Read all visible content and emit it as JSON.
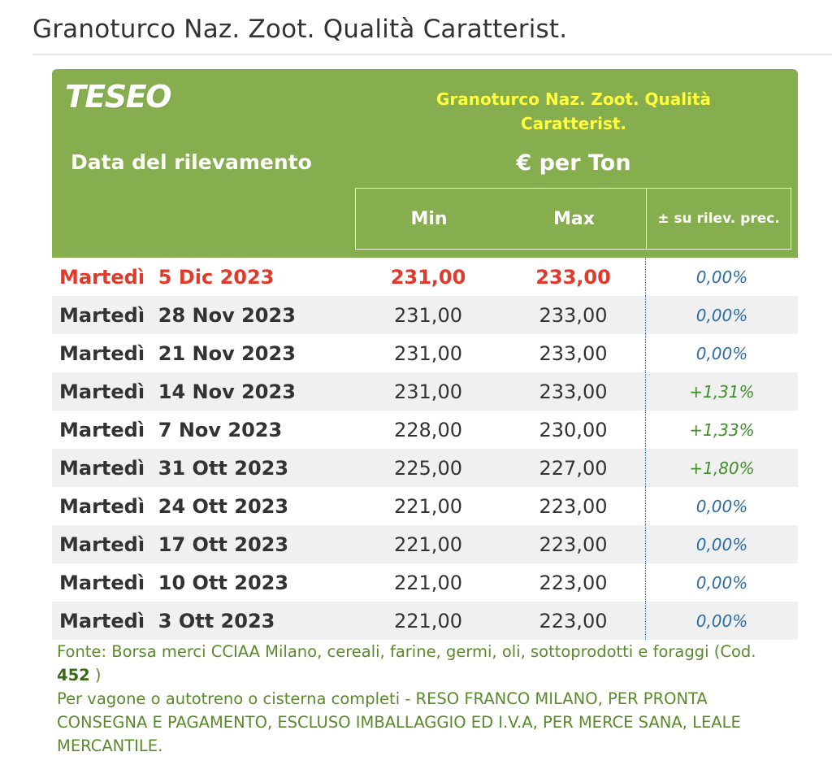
{
  "page": {
    "title": "Granoturco Naz. Zoot. Qualità Caratterist."
  },
  "header": {
    "logo": "TESEO",
    "date_column": "Data del rilevamento",
    "product": "Granoturco Naz. Zoot. Qualità Caratterist.",
    "unit": "€ per Ton",
    "min_label": "Min",
    "max_label": "Max",
    "var_label": "± su rilev. prec."
  },
  "rows": [
    {
      "date": "Martedì  5 Dic 2023",
      "min": "231,00",
      "max": "233,00",
      "var": "0,00%",
      "trend": "flat",
      "current": true
    },
    {
      "date": "Martedì  28 Nov 2023",
      "min": "231,00",
      "max": "233,00",
      "var": "0,00%",
      "trend": "flat"
    },
    {
      "date": "Martedì  21 Nov 2023",
      "min": "231,00",
      "max": "233,00",
      "var": "0,00%",
      "trend": "flat"
    },
    {
      "date": "Martedì  14 Nov 2023",
      "min": "231,00",
      "max": "233,00",
      "var": "+1,31%",
      "trend": "up"
    },
    {
      "date": "Martedì  7 Nov 2023",
      "min": "228,00",
      "max": "230,00",
      "var": "+1,33%",
      "trend": "up"
    },
    {
      "date": "Martedì  31 Ott 2023",
      "min": "225,00",
      "max": "227,00",
      "var": "+1,80%",
      "trend": "up"
    },
    {
      "date": "Martedì  24 Ott 2023",
      "min": "221,00",
      "max": "223,00",
      "var": "0,00%",
      "trend": "flat"
    },
    {
      "date": "Martedì  17 Ott 2023",
      "min": "221,00",
      "max": "223,00",
      "var": "0,00%",
      "trend": "flat"
    },
    {
      "date": "Martedì  10 Ott 2023",
      "min": "221,00",
      "max": "223,00",
      "var": "0,00%",
      "trend": "flat"
    },
    {
      "date": "Martedì  3 Ott 2023",
      "min": "221,00",
      "max": "223,00",
      "var": "0,00%",
      "trend": "flat"
    }
  ],
  "footer": {
    "source_prefix": "Fonte: Borsa merci CCIAA Milano, cereali, farine, germi, oli, sottoprodotti e foraggi (Cod. ",
    "source_code": "452",
    "source_suffix": " )",
    "conditions": "Per vagone o autotreno o cisterna completi - RESO FRANCO MILANO, PER PRONTA CONSEGNA E PAGAMENTO, ESCLUSO IMBALLAGGIO ED I.V.A, PER MERCE SANA, LEALE MERCANTILE."
  },
  "colors": {
    "header_bg": "#86ad4e",
    "product_title": "#ffff40",
    "current_row": "#e03a2c",
    "var_flat": "#2e6da4",
    "var_up": "#3e8f2a",
    "footer_text": "#5a8a2c"
  }
}
